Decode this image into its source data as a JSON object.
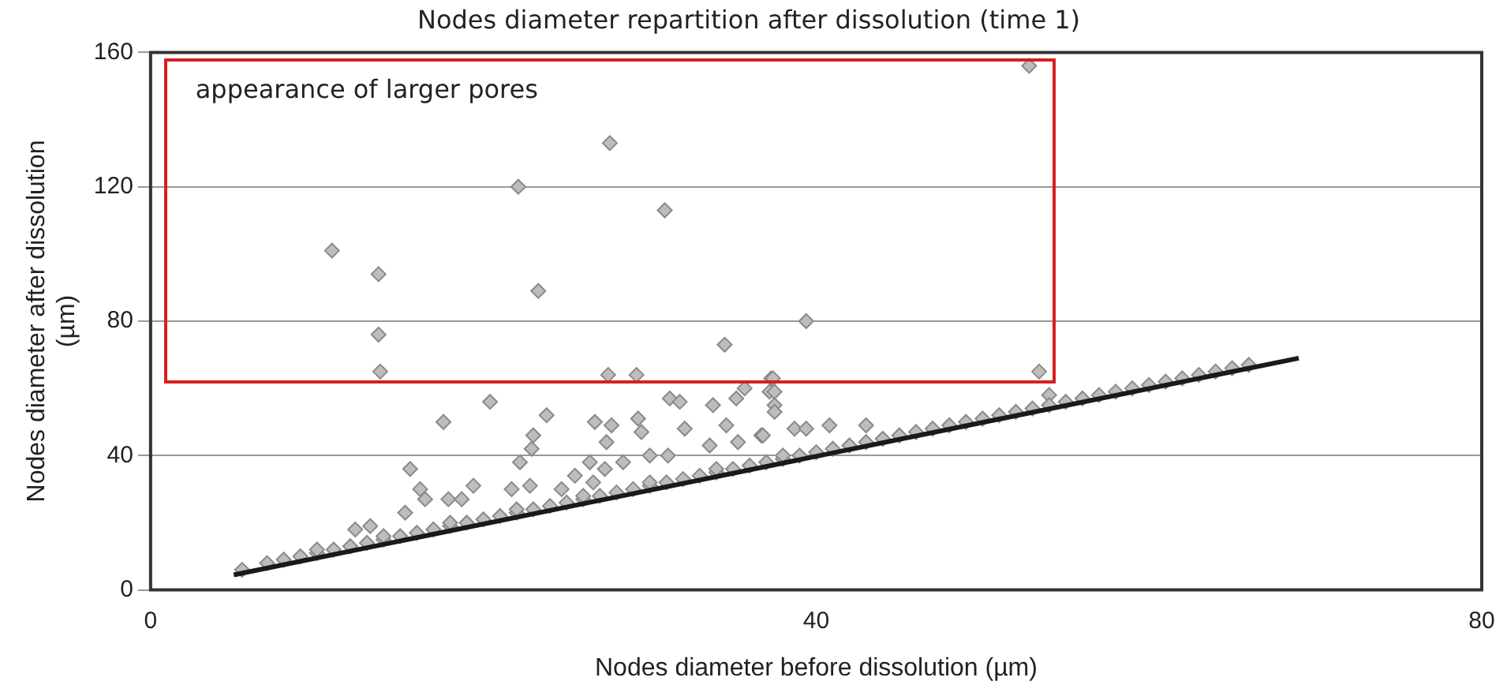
{
  "chart_data": {
    "type": "scatter",
    "title": "Nodes diameter repartition after dissolution (time 1)",
    "xlabel": "Nodes diameter before dissolution (µm)",
    "ylabel": "Nodes diameter after dissolution (µm)",
    "annotations": [
      "appearance of larger pores"
    ],
    "xlim": [
      0,
      80
    ],
    "xticks": [
      0,
      40,
      80
    ],
    "ylim": [
      0,
      160
    ],
    "yticks": [
      0,
      40,
      80,
      120,
      160
    ],
    "grid": "y",
    "legend": false,
    "series": [
      {
        "color": "#bdbdbd",
        "marker": "diamond",
        "x": [
          10.9,
          13.7,
          13.7,
          13.8,
          22.1,
          23.3,
          27.6,
          30.9,
          27.5,
          29.2,
          34.5,
          39.4,
          37.3,
          52.8,
          53.4,
          20.4,
          17.6,
          23.8,
          15.6,
          16.2,
          16.5,
          17.9,
          18.7,
          19.4,
          15.3,
          12.3,
          13.2,
          23.0,
          22.9,
          22.2,
          21.7,
          22.8,
          26.7,
          27.7,
          27.4,
          29.3,
          29.5,
          31.2,
          31.8,
          32.1,
          33.8,
          34.6,
          35.2,
          35.7,
          37.2,
          33.6,
          35.3,
          36.7,
          26.4,
          25.5,
          27.3,
          28.4,
          26.6,
          30.0,
          31.1,
          24.7,
          37.4,
          37.5,
          37.5,
          37.5,
          36.8,
          38.7,
          39.4,
          40.8,
          43.0,
          54.0,
          5.5,
          7,
          8,
          9,
          10,
          11,
          12,
          13,
          14,
          15,
          16,
          17,
          18,
          19,
          20,
          21,
          22,
          23,
          24,
          25,
          26,
          27,
          28,
          29,
          30,
          31,
          32,
          33,
          34,
          35,
          36,
          37,
          38,
          39,
          40,
          41,
          42,
          43,
          44,
          45,
          46,
          47,
          48,
          49,
          50,
          51,
          52,
          53,
          54,
          55,
          56,
          57,
          58,
          59,
          60,
          61,
          62,
          63,
          64,
          65,
          66,
          10,
          14,
          18,
          22,
          26,
          30,
          34,
          38
        ],
        "values": [
          101,
          94,
          76,
          65,
          120,
          89,
          133,
          113,
          64,
          64,
          73,
          80,
          63,
          156,
          65,
          56,
          50,
          52,
          36,
          30,
          27,
          27,
          27,
          31,
          23,
          18,
          19,
          46,
          42,
          38,
          30,
          31,
          50,
          49,
          44,
          51,
          47,
          57,
          56,
          48,
          55,
          49,
          57,
          60,
          59,
          43,
          44,
          46,
          38,
          34,
          36,
          38,
          32,
          40,
          40,
          30,
          63,
          59,
          55,
          53,
          46,
          48,
          48,
          49,
          49,
          58,
          6,
          8,
          9,
          10,
          11,
          12,
          13,
          14,
          15,
          16,
          17,
          18,
          19,
          20,
          21,
          22,
          23,
          24,
          25,
          26,
          27,
          28,
          29,
          30,
          31,
          32,
          33,
          34,
          35,
          36,
          37,
          38,
          39,
          40,
          41,
          42,
          43,
          44,
          45,
          46,
          47,
          48,
          49,
          50,
          51,
          52,
          53,
          54,
          55,
          56,
          57,
          58,
          59,
          60,
          61,
          62,
          63,
          64,
          65,
          66,
          67,
          12,
          16,
          20,
          24,
          28,
          32,
          36,
          40
        ]
      },
      {
        "type": "line",
        "color": "#1a1a1a",
        "x": [
          5,
          69
        ],
        "values": [
          4.5,
          69
        ]
      }
    ]
  }
}
